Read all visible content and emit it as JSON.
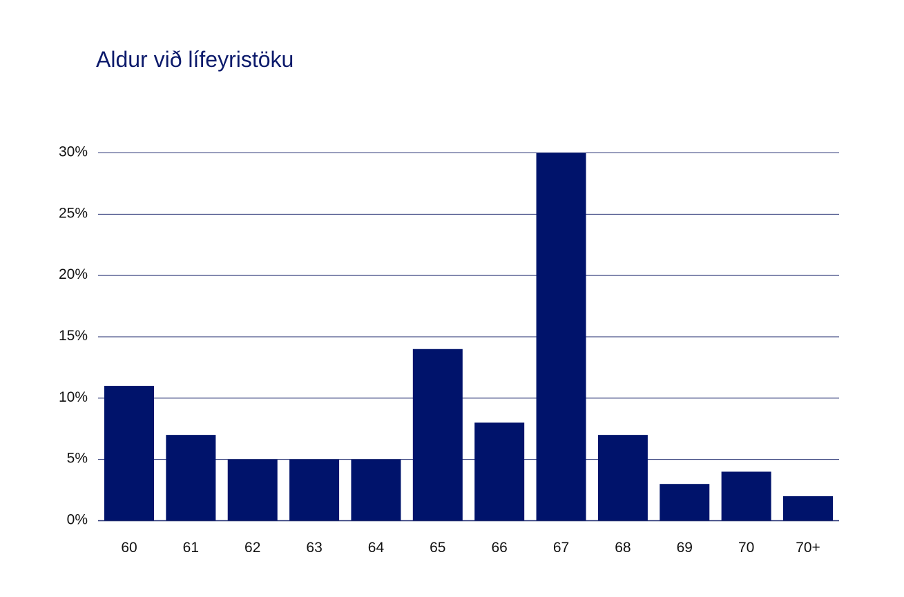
{
  "chart_data": {
    "type": "bar",
    "title": "Aldur við lífeyristöku",
    "xlabel": "",
    "ylabel": "",
    "categories": [
      "60",
      "61",
      "62",
      "63",
      "64",
      "65",
      "66",
      "67",
      "68",
      "69",
      "70",
      "70+"
    ],
    "values": [
      11,
      7,
      5,
      5,
      5,
      14,
      8,
      30,
      7,
      3,
      4,
      2
    ],
    "ylim": [
      0,
      30
    ],
    "yticks": [
      0,
      5,
      10,
      15,
      20,
      25,
      30
    ],
    "ytick_labels": [
      "0%",
      "5%",
      "10%",
      "15%",
      "20%",
      "25%",
      "30%"
    ],
    "value_unit": "%",
    "grid": true,
    "legend": "none",
    "bar_color": "#00136b",
    "grid_color": "#1f2a6e",
    "title_color": "#0c1a6b"
  }
}
